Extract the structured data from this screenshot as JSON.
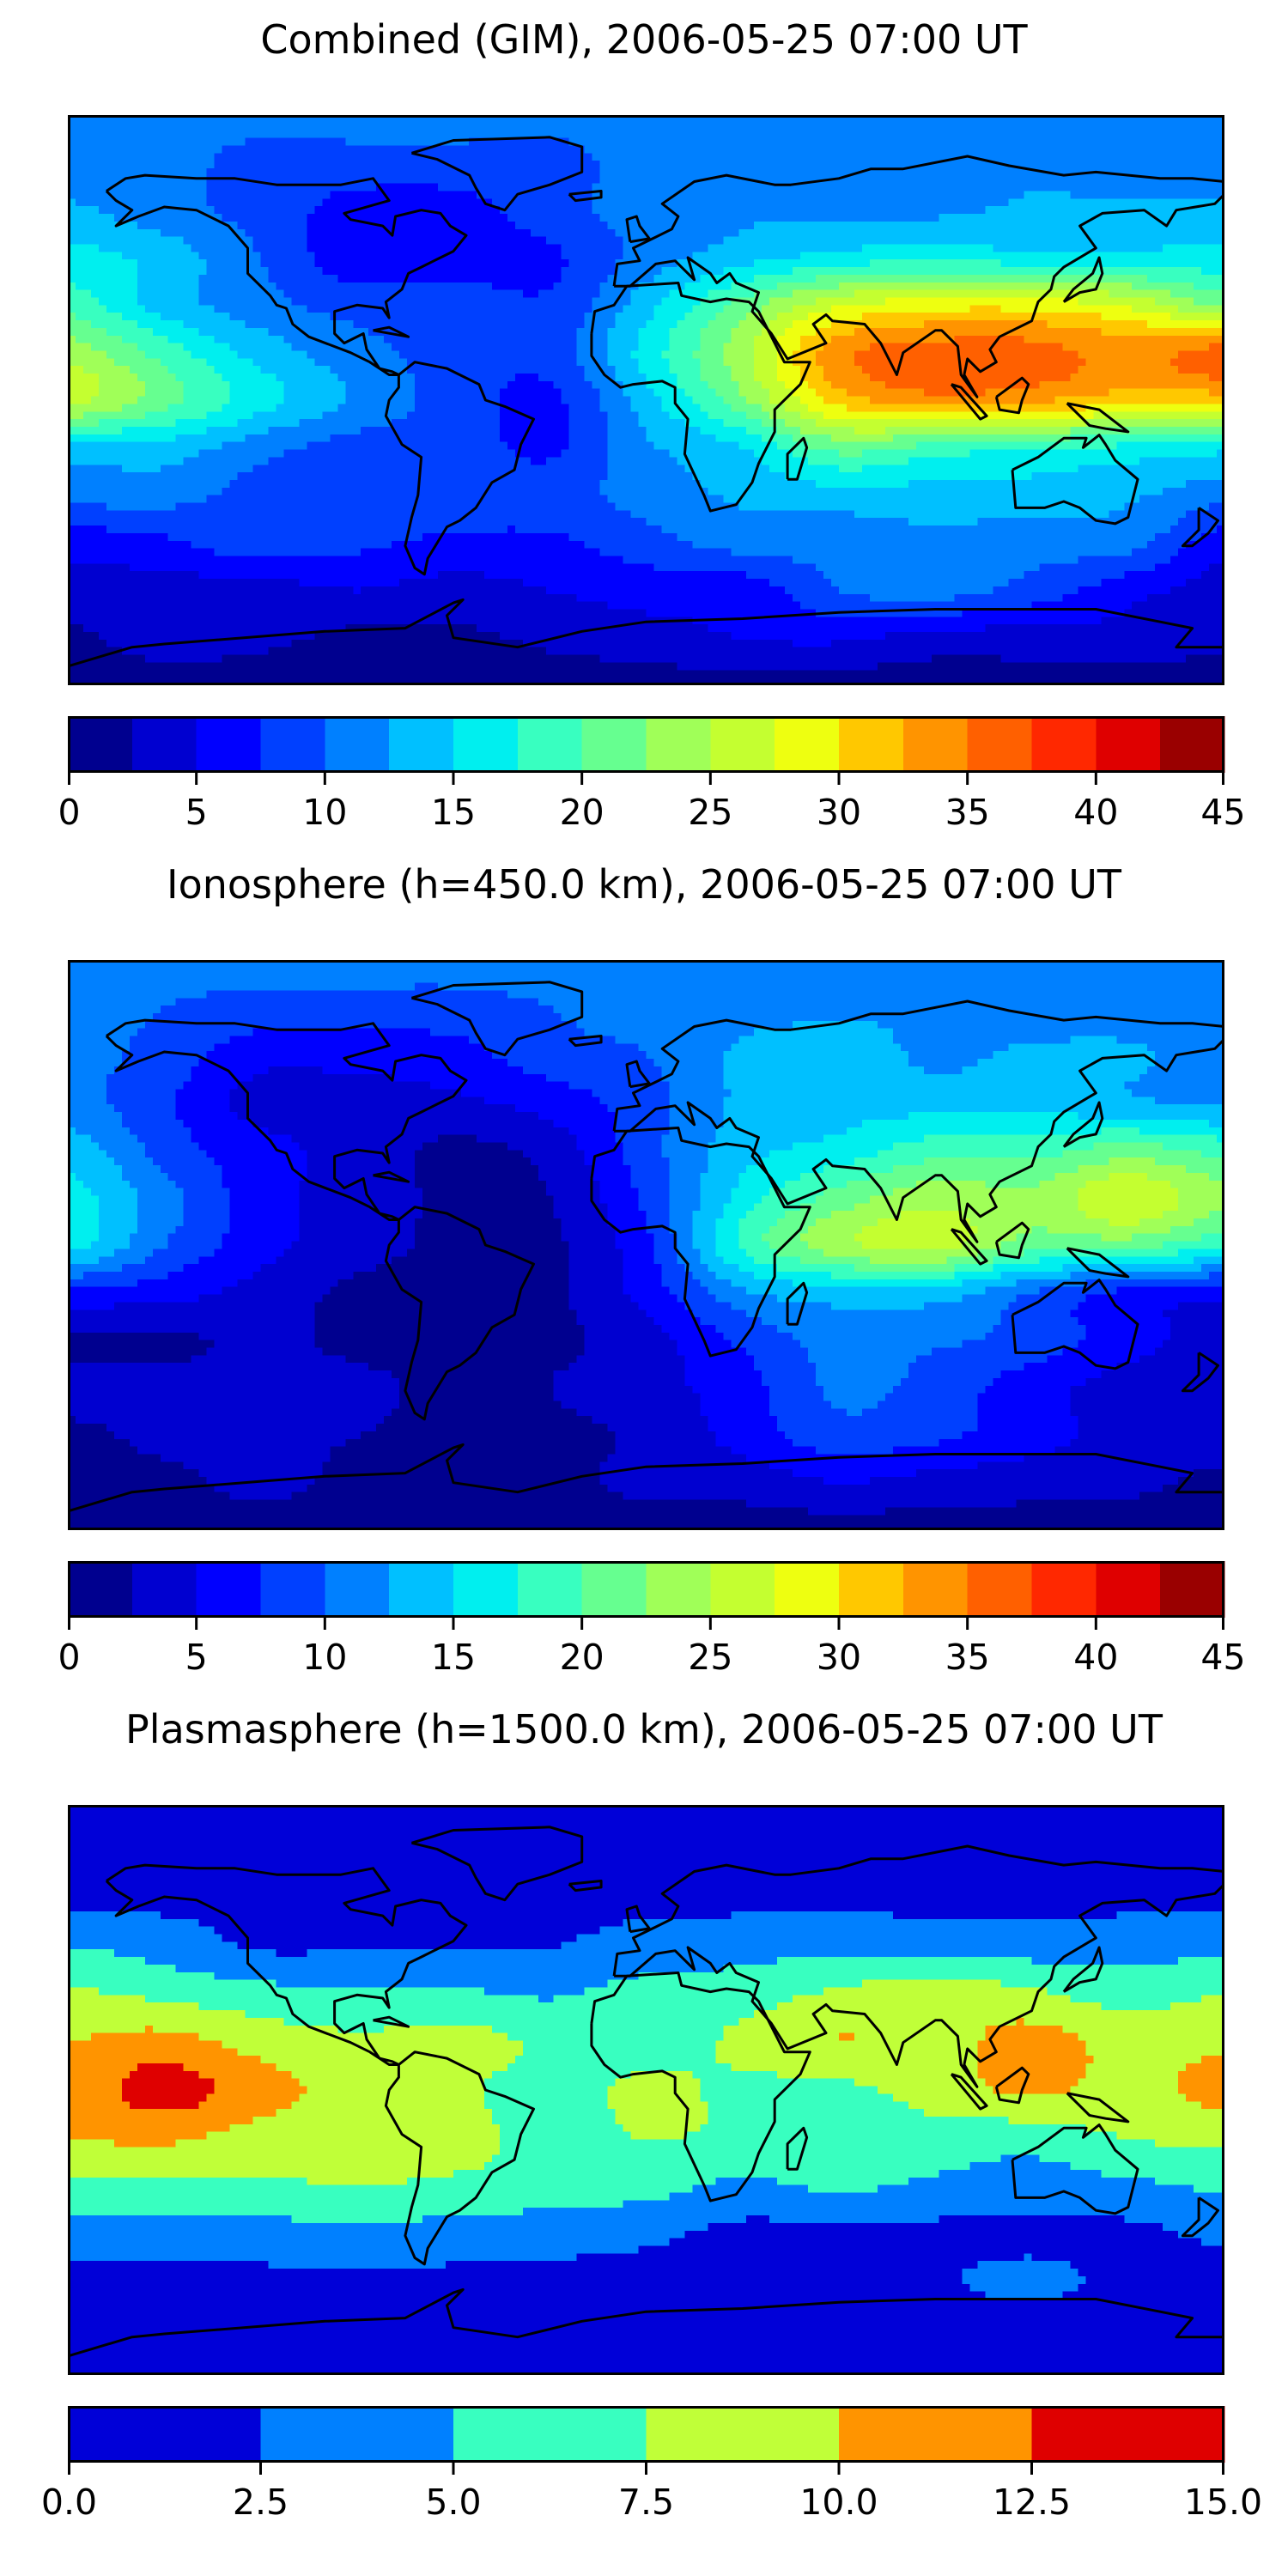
{
  "chart_data": [
    {
      "type": "heatmap",
      "title": "Combined (GIM), 2006-05-25 07:00 UT",
      "projection": "equirectangular",
      "lons": [
        -180,
        -150,
        -120,
        -90,
        -60,
        -30,
        0,
        30,
        60,
        90,
        120,
        150,
        180
      ],
      "lats": [
        90,
        75,
        60,
        45,
        30,
        15,
        0,
        -15,
        -30,
        -45,
        -60,
        -75,
        -90
      ],
      "values": [
        [
          11,
          11,
          11,
          11,
          11,
          11,
          11,
          11,
          11,
          11,
          11,
          11,
          11
        ],
        [
          11,
          11,
          9,
          9,
          9,
          9,
          11,
          11,
          11,
          11,
          12,
          11,
          11
        ],
        [
          13,
          11,
          9,
          6.5,
          6.5,
          9,
          11,
          12,
          12,
          12,
          13,
          13,
          13
        ],
        [
          16,
          14,
          10,
          6,
          6,
          7,
          11,
          14,
          16,
          17,
          16,
          16,
          16
        ],
        [
          19,
          14,
          11,
          9,
          9,
          8,
          14,
          21,
          27,
          29,
          29,
          27,
          22
        ],
        [
          24,
          19,
          14,
          11,
          9,
          8.5,
          16,
          24,
          34,
          36,
          36,
          34,
          36
        ],
        [
          26,
          21,
          16,
          12,
          9,
          7,
          14,
          22,
          31,
          34,
          33,
          31,
          31
        ],
        [
          14,
          14,
          11,
          9,
          9,
          7,
          12,
          15,
          21,
          19,
          18,
          17,
          16
        ],
        [
          11,
          11,
          9,
          9,
          9,
          9,
          11,
          13,
          14,
          14,
          14,
          13,
          11
        ],
        [
          6,
          7,
          9,
          8,
          7,
          7,
          9,
          11,
          11,
          12,
          11,
          11,
          6
        ],
        [
          4,
          4,
          4,
          5,
          4,
          5,
          6,
          6,
          10,
          11,
          9,
          6,
          4
        ],
        [
          2,
          3.5,
          3,
          2,
          2,
          3,
          4,
          5,
          5.5,
          4,
          4,
          4,
          3
        ],
        [
          1.5,
          1.5,
          1.5,
          1.5,
          1.5,
          1.5,
          1.5,
          1.5,
          1.5,
          1.5,
          1.5,
          1.5,
          1.5
        ]
      ],
      "levels_min": 0,
      "levels_max": 45,
      "level_step": 2.5,
      "colors": [
        "#00008f",
        "#0000d0",
        "#0000ff",
        "#0040ff",
        "#0080ff",
        "#00c0ff",
        "#00efef",
        "#38ffc0",
        "#66ff90",
        "#a0ff58",
        "#c4ff30",
        "#eeff10",
        "#ffc800",
        "#ff9400",
        "#ff6000",
        "#ff2800",
        "#df0000",
        "#9a0000"
      ],
      "colorbar_ticks": [
        0,
        5,
        10,
        15,
        20,
        25,
        30,
        35,
        40,
        45
      ],
      "colorbar_tick_labels": [
        "0",
        "5",
        "10",
        "15",
        "20",
        "25",
        "30",
        "35",
        "40",
        "45"
      ]
    },
    {
      "type": "heatmap",
      "title": "Ionosphere  (h=450.0 km), 2006-05-25 07:00 UT",
      "projection": "equirectangular",
      "lons": [
        -180,
        -150,
        -120,
        -90,
        -60,
        -30,
        0,
        30,
        60,
        90,
        120,
        150,
        180
      ],
      "lats": [
        90,
        75,
        60,
        45,
        30,
        15,
        0,
        -15,
        -30,
        -45,
        -60,
        -75,
        -90
      ],
      "values": [
        [
          11,
          11,
          11,
          11,
          11,
          11,
          11,
          11,
          11,
          11,
          11,
          11,
          11
        ],
        [
          11,
          10,
          9,
          9,
          9,
          10,
          11,
          11.5,
          12,
          12,
          11,
          11,
          11
        ],
        [
          11,
          9,
          6,
          6,
          6.5,
          9,
          10,
          13,
          14,
          12,
          13,
          13,
          11
        ],
        [
          11,
          8,
          4,
          4,
          4.5,
          6,
          9,
          13,
          14,
          14,
          14,
          13,
          12
        ],
        [
          14,
          9,
          6,
          4,
          2,
          3.5,
          9,
          14,
          16,
          19,
          19,
          21,
          19
        ],
        [
          16,
          11,
          6,
          4,
          2,
          2.5,
          8,
          16,
          21,
          24,
          23,
          27,
          23
        ],
        [
          16,
          10,
          6,
          3.5,
          2,
          2,
          7,
          18,
          24,
          26,
          21,
          21,
          18
        ],
        [
          7,
          6,
          4,
          2,
          2,
          2,
          6,
          12,
          14,
          14,
          10,
          7,
          6
        ],
        [
          2,
          2,
          3,
          2,
          2,
          2,
          4,
          8,
          11,
          10.5,
          9,
          6,
          4
        ],
        [
          3.5,
          3.5,
          3.5,
          3,
          2,
          2.5,
          4,
          6.5,
          10.5,
          9,
          6,
          4,
          3.5
        ],
        [
          2,
          3,
          3,
          2.5,
          2,
          2,
          3,
          6,
          9,
          8,
          6,
          4,
          3.5
        ],
        [
          2,
          2,
          3,
          2,
          2,
          2,
          3,
          3.5,
          5,
          4,
          3.5,
          3,
          2
        ],
        [
          1.5,
          1.5,
          1.5,
          1.5,
          1.5,
          1.5,
          1.5,
          1.5,
          1.5,
          1.5,
          1.5,
          1.5,
          1.5
        ]
      ],
      "levels_min": 0,
      "levels_max": 45,
      "level_step": 2.5,
      "colors": [
        "#00008f",
        "#0000d0",
        "#0000ff",
        "#0040ff",
        "#0080ff",
        "#00c0ff",
        "#00efef",
        "#38ffc0",
        "#66ff90",
        "#a0ff58",
        "#c4ff30",
        "#eeff10",
        "#ffc800",
        "#ff9400",
        "#ff6000",
        "#ff2800",
        "#df0000",
        "#9a0000"
      ],
      "colorbar_ticks": [
        0,
        5,
        10,
        15,
        20,
        25,
        30,
        35,
        40,
        45
      ],
      "colorbar_tick_labels": [
        "0",
        "5",
        "10",
        "15",
        "20",
        "25",
        "30",
        "35",
        "40",
        "45"
      ]
    },
    {
      "type": "heatmap",
      "title": "Plasmasphere (h=1500.0 km), 2006-05-25 07:00 UT",
      "projection": "equirectangular",
      "lons": [
        -180,
        -150,
        -120,
        -90,
        -60,
        -30,
        0,
        30,
        60,
        90,
        120,
        150,
        180
      ],
      "lats": [
        90,
        75,
        60,
        45,
        30,
        15,
        0,
        -15,
        -30,
        -45,
        -60,
        -75,
        -90
      ],
      "values": [
        [
          1,
          1,
          1,
          1,
          1,
          1,
          1,
          1,
          1,
          1,
          1,
          1,
          1
        ],
        [
          1.5,
          1.5,
          1.5,
          1.5,
          1.5,
          1.5,
          1.5,
          1.5,
          1.5,
          1.5,
          1.5,
          1.5,
          1.5
        ],
        [
          2,
          2,
          2,
          2,
          2,
          2,
          2,
          2,
          2,
          2,
          2,
          2,
          2
        ],
        [
          5,
          4,
          2.3,
          2.4,
          2.4,
          2.5,
          3.5,
          4,
          4.5,
          4,
          4,
          4,
          4.5
        ],
        [
          8,
          7,
          6,
          5.5,
          5.5,
          4.8,
          6,
          6.5,
          8,
          9,
          8,
          6.5,
          7.6
        ],
        [
          10,
          11,
          9,
          8,
          8.5,
          7,
          6.5,
          8,
          10,
          9,
          11,
          9,
          9.5
        ],
        [
          11,
          13.5,
          11,
          9,
          8,
          6.5,
          8,
          7,
          7,
          8.5,
          10.5,
          9,
          11
        ],
        [
          10,
          10.5,
          9,
          8.5,
          8.5,
          6.5,
          7.6,
          7,
          6.5,
          6.5,
          6,
          7.6,
          8
        ],
        [
          7,
          7,
          7,
          7.6,
          7,
          6.5,
          6,
          4.5,
          5.5,
          4.5,
          4,
          4.5,
          5.5
        ],
        [
          4,
          3.8,
          4,
          4.5,
          4,
          3.5,
          3,
          2,
          2,
          2,
          2,
          2,
          3
        ],
        [
          2,
          2,
          2,
          2,
          2,
          2,
          2,
          2,
          2,
          2.3,
          3,
          2,
          2
        ],
        [
          1.5,
          1.5,
          1.5,
          1.5,
          1.5,
          1.5,
          1.5,
          1.5,
          1.5,
          1.5,
          1.5,
          1.5,
          1.5
        ],
        [
          1,
          1,
          1,
          1,
          1,
          1,
          1,
          1,
          1,
          1,
          1,
          1,
          1
        ]
      ],
      "levels_min": 0,
      "levels_max": 15,
      "level_step": 2.5,
      "colors": [
        "#0000d8",
        "#0080ff",
        "#38ffc0",
        "#c0ff38",
        "#ff9400",
        "#df0000"
      ],
      "colorbar_ticks": [
        0,
        2.5,
        5,
        7.5,
        10,
        12.5,
        15
      ],
      "colorbar_tick_labels": [
        "0.0",
        "2.5",
        "5.0",
        "7.5",
        "10.0",
        "12.5",
        "15.0"
      ]
    }
  ]
}
